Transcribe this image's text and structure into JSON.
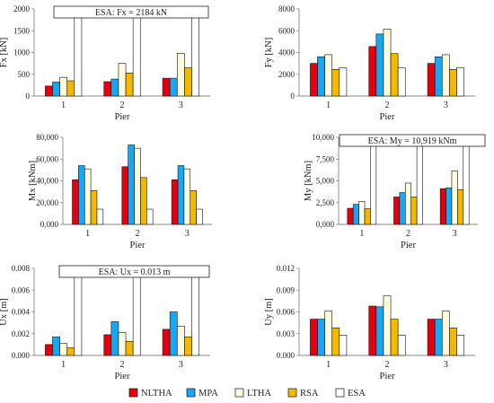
{
  "series_styles": [
    {
      "name": "NLTHA",
      "color": "#e3000f"
    },
    {
      "name": "MPA",
      "color": "#16a8f0"
    },
    {
      "name": "LTHA",
      "color": "#fffbdc"
    },
    {
      "name": "RSA",
      "color": "#f3b800"
    },
    {
      "name": "ESA",
      "color": "#ffffff"
    }
  ],
  "chart_data": [
    {
      "type": "bar",
      "categories": [
        "1",
        "2",
        "3"
      ],
      "xlabel": "Pier",
      "ylabel": "Fx [kN]",
      "ylim": [
        0,
        2000
      ],
      "yticks": [
        "0",
        "500",
        "1000",
        "1500",
        "2000"
      ],
      "yticks_values": [
        0,
        500,
        1000,
        1500,
        2000
      ],
      "annotation": "ESA:  Fx = 2184 kN",
      "series": [
        {
          "name": "NLTHA",
          "values": [
            230,
            330,
            410
          ]
        },
        {
          "name": "MPA",
          "values": [
            320,
            390,
            410
          ]
        },
        {
          "name": "LTHA",
          "values": [
            430,
            750,
            980
          ]
        },
        {
          "name": "RSA",
          "values": [
            350,
            530,
            650
          ]
        },
        {
          "name": "ESA",
          "values": [
            2184,
            2184,
            2184
          ]
        }
      ]
    },
    {
      "type": "bar",
      "categories": [
        "1",
        "2",
        "3"
      ],
      "xlabel": "Pier",
      "ylabel": "Fy [kN]",
      "ylim": [
        0,
        8000
      ],
      "yticks": [
        "0",
        "2000",
        "4000",
        "6000",
        "8000"
      ],
      "yticks_values": [
        0,
        2000,
        4000,
        6000,
        8000
      ],
      "series": [
        {
          "name": "NLTHA",
          "values": [
            3000,
            4550,
            3000
          ]
        },
        {
          "name": "MPA",
          "values": [
            3600,
            5700,
            3600
          ]
        },
        {
          "name": "LTHA",
          "values": [
            3800,
            6150,
            3800
          ]
        },
        {
          "name": "RSA",
          "values": [
            2450,
            3900,
            2450
          ]
        },
        {
          "name": "ESA",
          "values": [
            2600,
            2600,
            2600
          ]
        }
      ]
    },
    {
      "type": "bar",
      "categories": [
        "1",
        "2",
        "3"
      ],
      "xlabel": "Pier",
      "ylabel": "Mx [kNm]",
      "ylim": [
        0,
        80000
      ],
      "yticks": [
        "0,000",
        "20,000",
        "40,000",
        "60,000",
        "80,000"
      ],
      "yticks_values": [
        0,
        20000,
        40000,
        60000,
        80000
      ],
      "series": [
        {
          "name": "NLTHA",
          "values": [
            41000,
            53000,
            41000
          ]
        },
        {
          "name": "MPA",
          "values": [
            54000,
            73000,
            54000
          ]
        },
        {
          "name": "LTHA",
          "values": [
            51000,
            70000,
            51000
          ]
        },
        {
          "name": "RSA",
          "values": [
            31000,
            43000,
            31000
          ]
        },
        {
          "name": "ESA",
          "values": [
            14000,
            14000,
            14000
          ]
        }
      ]
    },
    {
      "type": "bar",
      "categories": [
        "1",
        "2",
        "3"
      ],
      "xlabel": "Pier",
      "ylabel": "My [kNm]",
      "ylim": [
        0,
        10000
      ],
      "yticks": [
        "0,000",
        "2,500",
        "5,000",
        "7,500",
        "10,000"
      ],
      "yticks_values": [
        0,
        2500,
        5000,
        7500,
        10000
      ],
      "annotation": "ESA:  My = 10,919 kNm",
      "series": [
        {
          "name": "NLTHA",
          "values": [
            1850,
            3150,
            4100
          ]
        },
        {
          "name": "MPA",
          "values": [
            2300,
            3650,
            4200
          ]
        },
        {
          "name": "LTHA",
          "values": [
            2650,
            4750,
            6150
          ]
        },
        {
          "name": "RSA",
          "values": [
            1800,
            3150,
            4000
          ]
        },
        {
          "name": "ESA",
          "values": [
            10919,
            10919,
            10919
          ]
        }
      ]
    },
    {
      "type": "bar",
      "categories": [
        "1",
        "2",
        "3"
      ],
      "xlabel": "Pier",
      "ylabel": "Ux [m]",
      "ylim": [
        0,
        0.008
      ],
      "yticks": [
        "0.000",
        "0.002",
        "0.004",
        "0.006",
        "0.008"
      ],
      "yticks_values": [
        0,
        0.002,
        0.004,
        0.006,
        0.008
      ],
      "annotation": "ESA:  Ux = 0.013 m",
      "series": [
        {
          "name": "NLTHA",
          "values": [
            0.001,
            0.0019,
            0.0024
          ]
        },
        {
          "name": "MPA",
          "values": [
            0.0017,
            0.0031,
            0.004
          ]
        },
        {
          "name": "LTHA",
          "values": [
            0.0011,
            0.0021,
            0.0027
          ]
        },
        {
          "name": "RSA",
          "values": [
            0.0007,
            0.0013,
            0.0017
          ]
        },
        {
          "name": "ESA",
          "values": [
            0.013,
            0.013,
            0.013
          ]
        }
      ]
    },
    {
      "type": "bar",
      "categories": [
        "1",
        "2",
        "3"
      ],
      "xlabel": "Pier",
      "ylabel": "Uy [m]",
      "ylim": [
        0,
        0.012
      ],
      "yticks": [
        "0.000",
        "0.003",
        "0.006",
        "0.009",
        "0.012"
      ],
      "yticks_values": [
        0,
        0.003,
        0.006,
        0.009,
        0.012
      ],
      "series": [
        {
          "name": "NLTHA",
          "values": [
            0.005,
            0.0068,
            0.005
          ]
        },
        {
          "name": "MPA",
          "values": [
            0.005,
            0.0067,
            0.005
          ]
        },
        {
          "name": "LTHA",
          "values": [
            0.0061,
            0.0082,
            0.0061
          ]
        },
        {
          "name": "RSA",
          "values": [
            0.0038,
            0.005,
            0.0038
          ]
        },
        {
          "name": "ESA",
          "values": [
            0.0028,
            0.0028,
            0.0028
          ]
        }
      ]
    }
  ]
}
